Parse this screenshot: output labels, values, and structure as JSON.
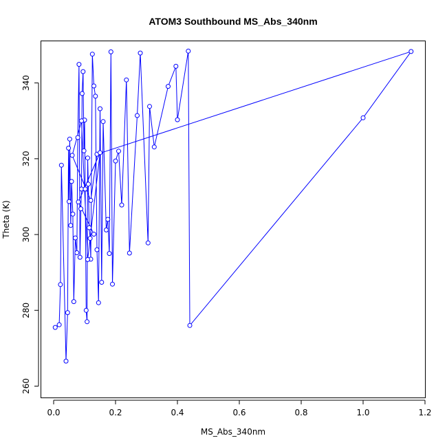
{
  "chart_data": {
    "type": "line",
    "title": "ATOM3 Southbound MS_Abs_340nm",
    "xlabel": "MS_Abs_340nm",
    "ylabel": "Theta (K)",
    "xlim": [
      -0.04,
      1.2
    ],
    "ylim": [
      257,
      351
    ],
    "xticks": [
      0.0,
      0.2,
      0.4,
      0.6,
      0.8,
      1.0,
      1.2
    ],
    "yticks": [
      260,
      280,
      300,
      320,
      340
    ],
    "xtick_labels": [
      "0.0",
      "0.2",
      "0.4",
      "0.6",
      "0.8",
      "1.0",
      "1.2"
    ],
    "ytick_labels": [
      "260",
      "280",
      "300",
      "320",
      "340"
    ],
    "grid": false,
    "series_color": "#0000ff",
    "x": [
      0.005,
      0.018,
      0.022,
      0.025,
      0.04,
      0.045,
      0.048,
      0.05,
      0.052,
      0.055,
      0.058,
      0.062,
      0.065,
      0.07,
      0.075,
      0.078,
      0.082,
      0.085,
      0.088,
      0.09,
      0.092,
      0.095,
      0.098,
      0.1,
      0.102,
      0.105,
      0.108,
      0.11,
      0.112,
      0.115,
      0.118,
      0.12,
      0.125,
      0.13,
      0.135,
      0.14,
      0.145,
      0.15,
      0.155,
      0.16,
      0.17,
      0.175,
      0.18,
      0.185,
      0.19,
      0.2,
      0.21,
      0.22,
      0.235,
      0.245,
      0.27,
      0.28,
      0.305,
      0.31,
      0.325,
      0.37,
      0.395,
      0.4,
      0.435,
      0.44,
      1.0,
      1.155,
      0.14,
      0.12,
      0.06,
      0.09,
      0.11,
      0.15,
      0.08,
      0.13
    ],
    "y": [
      275.5,
      276.2,
      286.8,
      318.3,
      266.6,
      279.4,
      322.8,
      308.7,
      325.2,
      302.4,
      314.0,
      305.4,
      282.3,
      299.1,
      295.2,
      325.6,
      344.9,
      294.0,
      306.8,
      312.0,
      337.2,
      343.0,
      322.1,
      330.2,
      312.0,
      280.0,
      277.0,
      320.2,
      313.3,
      301.8,
      299.0,
      293.5,
      347.6,
      339.2,
      336.5,
      296.0,
      282.0,
      333.2,
      287.4,
      329.8,
      301.2,
      304.0,
      295.0,
      348.2,
      286.9,
      319.4,
      322.0,
      307.8,
      340.8,
      295.1,
      331.4,
      347.9,
      297.8,
      333.8,
      323.1,
      339.1,
      344.4,
      330.3,
      348.4,
      276.0,
      330.8,
      348.3,
      321.2,
      309.0,
      320.9,
      330.0,
      293.4,
      321.6,
      308.6,
      300.1
    ]
  }
}
